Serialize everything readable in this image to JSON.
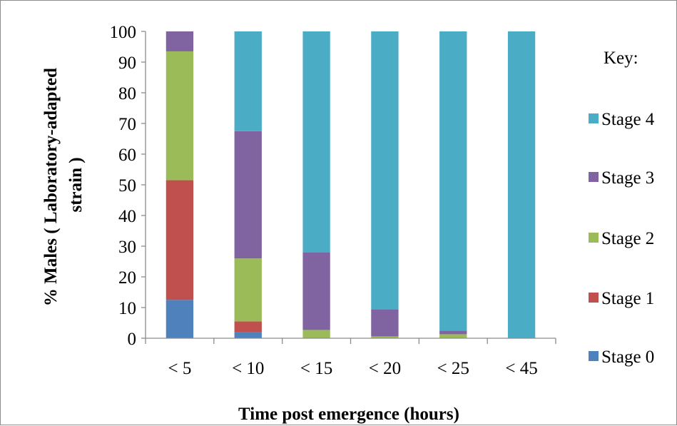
{
  "chart_data": {
    "type": "bar",
    "stacked": true,
    "categories": [
      "< 5",
      "< 10",
      "< 15",
      "< 20",
      "< 25",
      "< 45"
    ],
    "series": [
      {
        "name": "Stage 0",
        "color": "#4f81bd",
        "values": [
          12.5,
          2,
          0,
          0,
          0,
          0
        ]
      },
      {
        "name": "Stage 1",
        "color": "#c0504d",
        "values": [
          39,
          3.5,
          0,
          0,
          0,
          0
        ]
      },
      {
        "name": "Stage 2",
        "color": "#9bbb59",
        "values": [
          42,
          20.5,
          2.7,
          0.6,
          1.3,
          0
        ]
      },
      {
        "name": "Stage 3",
        "color": "#8064a2",
        "values": [
          6.5,
          41.5,
          25.3,
          8.8,
          1.2,
          0
        ]
      },
      {
        "name": "Stage 4",
        "color": "#4bacc6",
        "values": [
          0,
          32.5,
          72,
          90.6,
          97.5,
          100
        ]
      }
    ],
    "xlabel": "Time post emergence (hours)",
    "ylabel_lines": [
      "% Males ( Laboratory-adapted",
      "strain )"
    ],
    "ylim": [
      0,
      100
    ],
    "yticks": [
      0,
      10,
      20,
      30,
      40,
      50,
      60,
      70,
      80,
      90,
      100
    ],
    "grid": false,
    "legend_title": "Key:",
    "legend_position": "right",
    "legend_order": [
      "Stage 4",
      "Stage 3",
      "Stage 2",
      "Stage 1",
      "Stage 0"
    ]
  }
}
